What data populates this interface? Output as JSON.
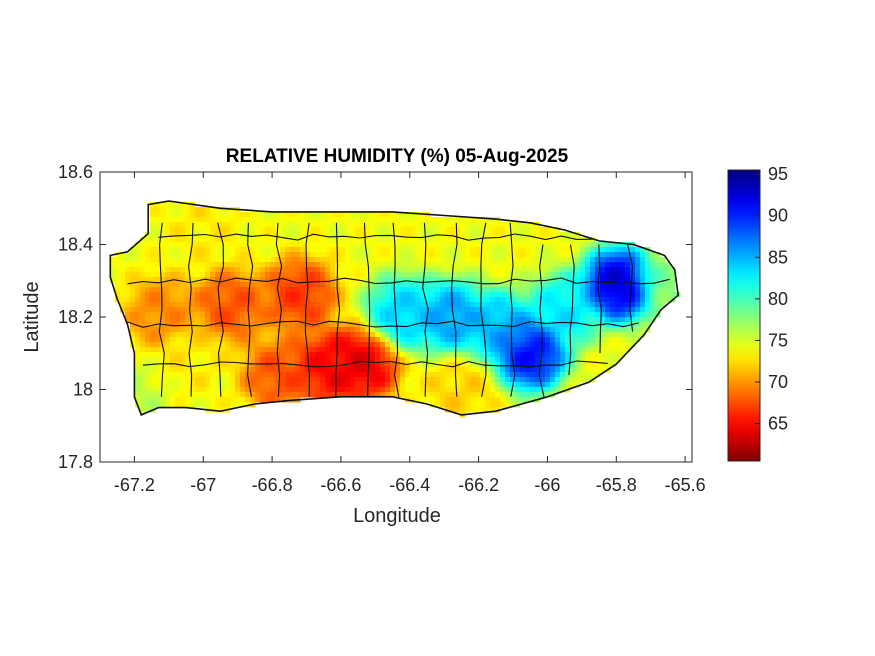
{
  "chart_data": {
    "type": "heatmap",
    "title": "RELATIVE HUMIDITY (%) 05-Aug-2025",
    "xlabel": "Longitude",
    "ylabel": "Latitude",
    "xlim": [
      -67.3,
      -65.58
    ],
    "ylim": [
      17.8,
      18.6
    ],
    "x_ticks": [
      -67.2,
      -67,
      -66.8,
      -66.6,
      -66.4,
      -66.2,
      -66,
      -65.8,
      -65.6
    ],
    "x_tick_labels": [
      "-67.2",
      "-67",
      "-66.8",
      "-66.6",
      "-66.4",
      "-66.2",
      "-66",
      "-65.8",
      "-65.6"
    ],
    "y_ticks": [
      17.8,
      18,
      18.2,
      18.4,
      18.6
    ],
    "y_tick_labels": [
      "17.8",
      "18",
      "18.2",
      "18.4",
      "18.6"
    ],
    "colorbar": {
      "colormap": "jet",
      "range": [
        60.5,
        95.5
      ],
      "ticks": [
        65,
        70,
        75,
        80,
        85,
        90,
        95
      ],
      "tick_labels": [
        "65",
        "70",
        "75",
        "80",
        "85",
        "90",
        "95"
      ]
    },
    "grid": false,
    "humidity_features": [
      {
        "lon": -65.79,
        "lat": 18.29,
        "value": 95
      },
      {
        "lon": -66.05,
        "lat": 18.1,
        "value": 93
      },
      {
        "lon": -66.28,
        "lat": 18.2,
        "value": 87
      },
      {
        "lon": -66.42,
        "lat": 18.21,
        "value": 85
      },
      {
        "lon": -66.14,
        "lat": 18.17,
        "value": 86
      },
      {
        "lon": -65.95,
        "lat": 18.22,
        "value": 84
      },
      {
        "lon": -66.54,
        "lat": 18.07,
        "value": 63
      },
      {
        "lon": -66.64,
        "lat": 18.06,
        "value": 64
      },
      {
        "lon": -66.72,
        "lat": 18.26,
        "value": 66
      },
      {
        "lon": -66.92,
        "lat": 18.23,
        "value": 67
      },
      {
        "lon": -67.12,
        "lat": 18.21,
        "value": 69
      },
      {
        "lon": -66.78,
        "lat": 18.04,
        "value": 67
      },
      {
        "lon": -67.05,
        "lat": 18.08,
        "value": 73
      },
      {
        "lon": -67.2,
        "lat": 17.98,
        "value": 76
      },
      {
        "lon": -66.3,
        "lat": 18.45,
        "value": 74
      },
      {
        "lon": -65.65,
        "lat": 18.3,
        "value": 78
      },
      {
        "lon": -66.25,
        "lat": 18.0,
        "value": 72
      },
      {
        "lon": -67.0,
        "lat": 18.45,
        "value": 73
      }
    ],
    "base_value": 74
  }
}
